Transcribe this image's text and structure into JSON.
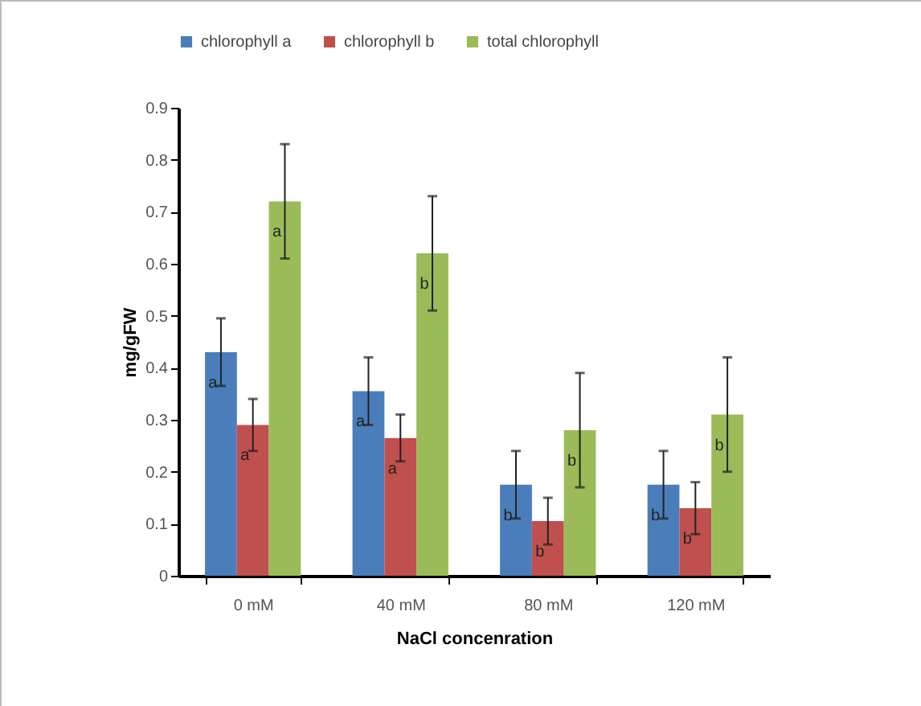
{
  "chart_data": {
    "type": "bar",
    "xlabel": "NaCl concenration",
    "ylabel": "mg/gFW",
    "categories": [
      "0 mM",
      "40 mM",
      "80 mM",
      "120 mM"
    ],
    "series": [
      {
        "name": "chlorophyll a",
        "color": "#4a7ebb",
        "values": [
          0.43,
          0.355,
          0.175,
          0.175
        ],
        "errors": [
          0.065,
          0.065,
          0.065,
          0.065
        ]
      },
      {
        "name": "chlorophyll b",
        "color": "#c0504d",
        "values": [
          0.29,
          0.265,
          0.105,
          0.13
        ],
        "errors": [
          0.05,
          0.045,
          0.045,
          0.05
        ]
      },
      {
        "name": "total chlorophyll",
        "color": "#9bbb59",
        "values": [
          0.72,
          0.62,
          0.28,
          0.31
        ],
        "errors": [
          0.11,
          0.11,
          0.11,
          0.11
        ]
      }
    ],
    "annotations": [
      "a",
      "a",
      "a",
      "a",
      "a",
      "b",
      "b",
      "b",
      "b",
      "b",
      "b",
      "b"
    ],
    "ylim": [
      0,
      0.9
    ],
    "yticks": [
      {
        "value": 0,
        "label": "0"
      },
      {
        "value": 0.1,
        "label": "0.1"
      },
      {
        "value": 0.2,
        "label": "0.2"
      },
      {
        "value": 0.3,
        "label": "0.3"
      },
      {
        "value": 0.4,
        "label": "0.4"
      },
      {
        "value": 0.5,
        "label": "0.5"
      },
      {
        "value": 0.6,
        "label": "0.6"
      },
      {
        "value": 0.7,
        "label": "0.7"
      },
      {
        "value": 0.8,
        "label": "0.8"
      },
      {
        "value": 0.9,
        "label": "0.9"
      }
    ],
    "grid": false,
    "legend": "top"
  }
}
